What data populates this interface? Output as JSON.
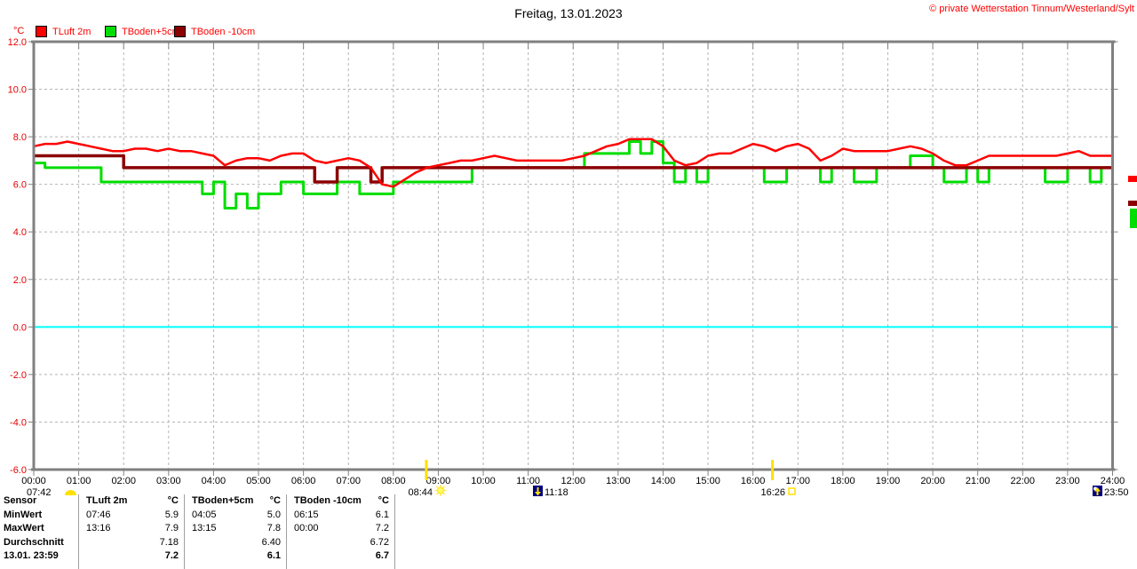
{
  "header": {
    "title": "Freitag, 13.01.2023",
    "copyright": "© private Wetterstation Tinnum/Westerland/Sylt",
    "unit": "°C"
  },
  "legend": [
    {
      "label": "TLuft 2m",
      "color": "#ff0000"
    },
    {
      "label": "TBoden+5cm",
      "color": "#00dd00"
    },
    {
      "label": "TBoden -10cm",
      "color": "#8b0000"
    }
  ],
  "chart_data": {
    "type": "line",
    "title": "Freitag, 13.01.2023",
    "ylabel": "°C",
    "ylim": [
      -6,
      12
    ],
    "grid": true,
    "ytick_values": [
      12,
      10,
      8,
      6,
      4,
      2,
      0,
      -2,
      -4,
      -6
    ],
    "ytick_labels": [
      "12.0",
      "10.0",
      "8.0",
      "6.0",
      "4.0",
      "2.0",
      "0.0",
      "-2.0",
      "-4.0",
      "-6.0"
    ],
    "xtick_labels": [
      "00:00",
      "01:00",
      "02:00",
      "03:00",
      "04:00",
      "05:00",
      "06:00",
      "07:00",
      "08:00",
      "09:00",
      "10:00",
      "11:00",
      "12:00",
      "13:00",
      "14:00",
      "15:00",
      "16:00",
      "17:00",
      "18:00",
      "19:00",
      "20:00",
      "21:00",
      "22:00",
      "23:00",
      "24:00"
    ],
    "x_start_hour": 0,
    "x_end_hour": 24,
    "sample_minutes": 15,
    "zero_line": {
      "value": 0,
      "color": "#00ffff"
    },
    "series": [
      {
        "name": "TBoden+5cm",
        "color": "#00dd00",
        "style": "step",
        "width": 3,
        "values": [
          6.9,
          6.7,
          6.7,
          6.7,
          6.7,
          6.7,
          6.1,
          6.1,
          6.1,
          6.1,
          6.1,
          6.1,
          6.1,
          6.1,
          6.1,
          5.6,
          6.1,
          5.0,
          5.6,
          5.0,
          5.6,
          5.6,
          6.1,
          6.1,
          5.6,
          5.6,
          5.6,
          6.1,
          6.1,
          5.6,
          5.6,
          5.6,
          6.1,
          6.1,
          6.1,
          6.1,
          6.1,
          6.1,
          6.1,
          6.7,
          6.7,
          6.7,
          6.7,
          6.7,
          6.7,
          6.7,
          6.7,
          6.7,
          6.7,
          7.3,
          7.3,
          7.3,
          7.3,
          7.8,
          7.3,
          7.8,
          6.9,
          6.1,
          6.7,
          6.1,
          6.7,
          6.7,
          6.7,
          6.7,
          6.7,
          6.1,
          6.1,
          6.7,
          6.7,
          6.7,
          6.1,
          6.7,
          6.7,
          6.1,
          6.1,
          6.7,
          6.7,
          6.7,
          7.2,
          7.2,
          6.7,
          6.1,
          6.1,
          6.7,
          6.1,
          6.7,
          6.7,
          6.7,
          6.7,
          6.7,
          6.1,
          6.1,
          6.7,
          6.7,
          6.1,
          6.7,
          6.1
        ]
      },
      {
        "name": "TBoden -10cm",
        "color": "#8b0000",
        "style": "step",
        "width": 3.5,
        "values": [
          7.2,
          7.2,
          7.2,
          7.2,
          7.2,
          7.2,
          7.2,
          7.2,
          6.7,
          6.7,
          6.7,
          6.7,
          6.7,
          6.7,
          6.7,
          6.7,
          6.7,
          6.7,
          6.7,
          6.7,
          6.7,
          6.7,
          6.7,
          6.7,
          6.7,
          6.1,
          6.1,
          6.7,
          6.7,
          6.7,
          6.1,
          6.7,
          6.7,
          6.7,
          6.7,
          6.7,
          6.7,
          6.7,
          6.7,
          6.7,
          6.7,
          6.7,
          6.7,
          6.7,
          6.7,
          6.7,
          6.7,
          6.7,
          6.7,
          6.7,
          6.7,
          6.7,
          6.7,
          6.7,
          6.7,
          6.7,
          6.7,
          6.7,
          6.7,
          6.7,
          6.7,
          6.7,
          6.7,
          6.7,
          6.7,
          6.7,
          6.7,
          6.7,
          6.7,
          6.7,
          6.7,
          6.7,
          6.7,
          6.7,
          6.7,
          6.7,
          6.7,
          6.7,
          6.7,
          6.7,
          6.7,
          6.7,
          6.7,
          6.7,
          6.7,
          6.7,
          6.7,
          6.7,
          6.7,
          6.7,
          6.7,
          6.7,
          6.7,
          6.7,
          6.7,
          6.7,
          6.7
        ]
      },
      {
        "name": "TLuft 2m",
        "color": "#ff0000",
        "style": "linear",
        "width": 2.5,
        "values": [
          7.6,
          7.7,
          7.7,
          7.8,
          7.7,
          7.6,
          7.5,
          7.4,
          7.4,
          7.5,
          7.5,
          7.4,
          7.5,
          7.4,
          7.4,
          7.3,
          7.2,
          6.8,
          7.0,
          7.1,
          7.1,
          7.0,
          7.2,
          7.3,
          7.3,
          7.0,
          6.9,
          7.0,
          7.1,
          7.0,
          6.7,
          6.0,
          5.9,
          6.2,
          6.5,
          6.7,
          6.8,
          6.9,
          7.0,
          7.0,
          7.1,
          7.2,
          7.1,
          7.0,
          7.0,
          7.0,
          7.0,
          7.0,
          7.1,
          7.2,
          7.4,
          7.6,
          7.7,
          7.9,
          7.9,
          7.9,
          7.6,
          7.0,
          6.8,
          6.9,
          7.2,
          7.3,
          7.3,
          7.5,
          7.7,
          7.6,
          7.4,
          7.6,
          7.7,
          7.5,
          7.0,
          7.2,
          7.5,
          7.4,
          7.4,
          7.4,
          7.4,
          7.5,
          7.6,
          7.5,
          7.3,
          7.0,
          6.8,
          6.8,
          7.0,
          7.2,
          7.2,
          7.2,
          7.2,
          7.2,
          7.2,
          7.2,
          7.3,
          7.4,
          7.2,
          7.2,
          7.2
        ]
      }
    ],
    "sun_moon_annotations": [
      {
        "time": "07:42",
        "icon": "dawn-icon"
      },
      {
        "time": "08:44",
        "icon": "sun-icon",
        "axis_line_hour": 8.733
      },
      {
        "time": "11:18",
        "icon": "moonset-icon"
      },
      {
        "time": "16:26",
        "icon": "sunset-square-icon",
        "axis_line_hour": 16.433
      },
      {
        "time": "23:50",
        "icon": "moonrise-icon"
      }
    ],
    "edge_markers": [
      {
        "color": "#ff0000"
      },
      {
        "color": "#8b0000"
      },
      {
        "color": "#00dd00"
      }
    ]
  },
  "table": {
    "col_headers": [
      "Sensor",
      "TLuft 2m",
      "TBoden+5cm",
      "TBoden -10cm"
    ],
    "unit": "°C",
    "rows": [
      {
        "label": "MinWert",
        "cells": [
          [
            "07:46",
            "5.9"
          ],
          [
            "04:05",
            "5.0"
          ],
          [
            "06:15",
            "6.1"
          ]
        ],
        "bold": false
      },
      {
        "label": "MaxWert",
        "cells": [
          [
            "13:16",
            "7.9"
          ],
          [
            "13:15",
            "7.8"
          ],
          [
            "00:00",
            "7.2"
          ]
        ],
        "bold": false
      },
      {
        "label": "Durchschnitt",
        "cells": [
          [
            "",
            "7.18"
          ],
          [
            "",
            "6.40"
          ],
          [
            "",
            "6.72"
          ]
        ],
        "bold": false
      },
      {
        "label": "13.01. 23:59",
        "cells": [
          [
            "",
            "7.2"
          ],
          [
            "",
            "6.1"
          ],
          [
            "",
            "6.7"
          ]
        ],
        "bold": true
      }
    ]
  }
}
